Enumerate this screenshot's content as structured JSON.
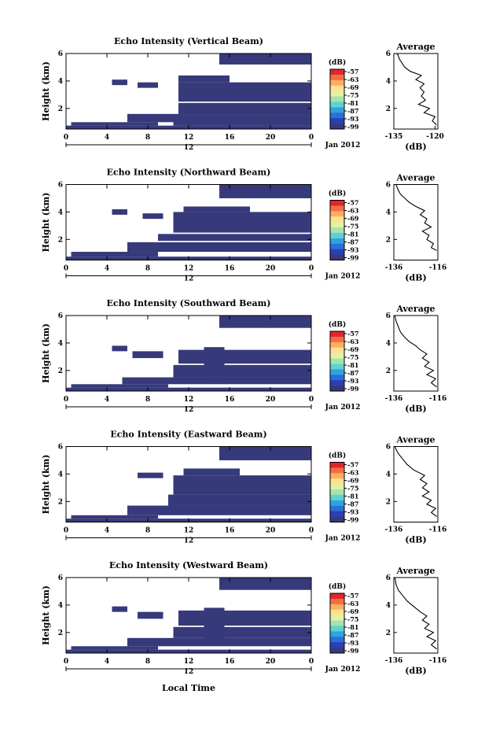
{
  "figure": {
    "xlabel": "Local Time",
    "date_label": "Jan 2012",
    "colorbar_unit": "(dB)",
    "colorbar_ticks": [
      "-57",
      "-63",
      "-69",
      "-75",
      "-81",
      "-87",
      "-93",
      "-99"
    ],
    "colorbar_colors": [
      "#e0262a",
      "#f46d43",
      "#fdae61",
      "#fee090",
      "#e0f3a0",
      "#a6e3b0",
      "#5ed3d0",
      "#2fa3e0",
      "#2c6fd8",
      "#2b40b8",
      "#363a7a"
    ],
    "fill_color": "#363a7a"
  },
  "chart_data": [
    {
      "type": "heatmap",
      "title": "Echo Intensity (Vertical Beam)",
      "ylabel": "Height (km)",
      "xticks": [
        "0",
        "4",
        "8",
        "12",
        "16",
        "20",
        "0"
      ],
      "day_label": "12",
      "xlim": [
        0,
        24
      ],
      "ylim": [
        0.5,
        6
      ],
      "yticks": [
        "2",
        "4",
        "6"
      ],
      "layers": [
        {
          "x0": 0,
          "x1": 24,
          "y0": 0.5,
          "y1": 0.75
        },
        {
          "x0": 0.5,
          "x1": 9,
          "y0": 0.75,
          "y1": 1.0
        },
        {
          "x0": 6,
          "x1": 11,
          "y0": 1.0,
          "y1": 1.6
        },
        {
          "x0": 10.5,
          "x1": 24,
          "y0": 0.75,
          "y1": 1.5
        },
        {
          "x0": 11,
          "x1": 24,
          "y0": 1.5,
          "y1": 2.4
        },
        {
          "x0": 11,
          "x1": 24,
          "y0": 2.5,
          "y1": 3.9
        },
        {
          "x0": 11,
          "x1": 16,
          "y0": 3.9,
          "y1": 4.4
        },
        {
          "x0": 4.5,
          "x1": 6,
          "y0": 3.7,
          "y1": 4.1
        },
        {
          "x0": 7,
          "x1": 9,
          "y0": 3.5,
          "y1": 3.9
        },
        {
          "x0": 15,
          "x1": 24,
          "y0": 5.2,
          "y1": 6.0
        }
      ],
      "average": {
        "xlabel": "(dB)",
        "title": "Average",
        "xlim": [
          -135,
          -119
        ],
        "xticks": [
          "-135",
          "-120"
        ],
        "yticks": [
          "2",
          "4",
          "6"
        ],
        "profile": [
          [
            -119.5,
            0.8
          ],
          [
            -121,
            1.1
          ],
          [
            -120,
            1.4
          ],
          [
            -124,
            1.7
          ],
          [
            -122,
            2.0
          ],
          [
            -126,
            2.3
          ],
          [
            -123.5,
            2.6
          ],
          [
            -125,
            2.9
          ],
          [
            -124,
            3.2
          ],
          [
            -125.5,
            3.5
          ],
          [
            -124,
            3.8
          ],
          [
            -127,
            4.1
          ],
          [
            -125,
            4.4
          ],
          [
            -129,
            4.7
          ],
          [
            -131,
            5.0
          ],
          [
            -132,
            5.3
          ],
          [
            -133,
            5.6
          ],
          [
            -133.5,
            5.9
          ],
          [
            -134,
            6.0
          ]
        ]
      }
    },
    {
      "type": "heatmap",
      "title": "Echo Intensity (Northward Beam)",
      "ylabel": "Height (km)",
      "xticks": [
        "0",
        "4",
        "8",
        "12",
        "16",
        "20",
        "0"
      ],
      "day_label": "12",
      "xlim": [
        0,
        24
      ],
      "ylim": [
        0.5,
        6
      ],
      "yticks": [
        "2",
        "4",
        "6"
      ],
      "layers": [
        {
          "x0": 0,
          "x1": 24,
          "y0": 0.5,
          "y1": 0.75
        },
        {
          "x0": 0.5,
          "x1": 9,
          "y0": 0.75,
          "y1": 1.1
        },
        {
          "x0": 6,
          "x1": 24,
          "y0": 1.1,
          "y1": 1.8
        },
        {
          "x0": 9,
          "x1": 24,
          "y0": 1.9,
          "y1": 2.4
        },
        {
          "x0": 10.5,
          "x1": 24,
          "y0": 2.5,
          "y1": 4.0
        },
        {
          "x0": 11.5,
          "x1": 18,
          "y0": 4.0,
          "y1": 4.4
        },
        {
          "x0": 4.5,
          "x1": 6,
          "y0": 3.8,
          "y1": 4.2
        },
        {
          "x0": 7.5,
          "x1": 9.5,
          "y0": 3.5,
          "y1": 3.9
        },
        {
          "x0": 15,
          "x1": 24,
          "y0": 5.0,
          "y1": 6.0
        }
      ],
      "average": {
        "xlabel": "(dB)",
        "title": "Average",
        "xlim": [
          -136,
          -116
        ],
        "xticks": [
          "-136",
          "-116"
        ],
        "yticks": [
          "2",
          "4",
          "6"
        ],
        "profile": [
          [
            -116.5,
            1.2
          ],
          [
            -119,
            1.4
          ],
          [
            -118,
            1.7
          ],
          [
            -121,
            2.0
          ],
          [
            -120,
            2.3
          ],
          [
            -123,
            2.6
          ],
          [
            -119,
            2.9
          ],
          [
            -122,
            3.2
          ],
          [
            -121,
            3.5
          ],
          [
            -124,
            3.8
          ],
          [
            -122,
            4.1
          ],
          [
            -126,
            4.4
          ],
          [
            -129,
            4.7
          ],
          [
            -131,
            5.0
          ],
          [
            -133,
            5.3
          ],
          [
            -134,
            5.6
          ],
          [
            -135,
            6.0
          ]
        ]
      }
    },
    {
      "type": "heatmap",
      "title": "Echo Intensity (Southward Beam)",
      "ylabel": "Height (km)",
      "xticks": [
        "0",
        "4",
        "8",
        "12",
        "16",
        "20",
        "0"
      ],
      "day_label": "12",
      "xlim": [
        0,
        24
      ],
      "ylim": [
        0.5,
        6
      ],
      "yticks": [
        "2",
        "4",
        "6"
      ],
      "layers": [
        {
          "x0": 0,
          "x1": 24,
          "y0": 0.5,
          "y1": 0.75
        },
        {
          "x0": 0.5,
          "x1": 10,
          "y0": 0.75,
          "y1": 1.0
        },
        {
          "x0": 5.5,
          "x1": 24,
          "y0": 1.0,
          "y1": 1.5
        },
        {
          "x0": 10.5,
          "x1": 24,
          "y0": 1.5,
          "y1": 2.4
        },
        {
          "x0": 13.5,
          "x1": 15.5,
          "y0": 1.5,
          "y1": 3.7
        },
        {
          "x0": 11,
          "x1": 24,
          "y0": 2.5,
          "y1": 3.5
        },
        {
          "x0": 6.5,
          "x1": 9.5,
          "y0": 2.9,
          "y1": 3.4
        },
        {
          "x0": 4.5,
          "x1": 6,
          "y0": 3.4,
          "y1": 3.8
        },
        {
          "x0": 15,
          "x1": 24,
          "y0": 5.1,
          "y1": 6.0
        }
      ],
      "average": {
        "xlabel": "(dB)",
        "title": "Average",
        "xlim": [
          -136,
          -116
        ],
        "xticks": [
          "-136",
          "-116"
        ],
        "yticks": [
          "2",
          "4",
          "6"
        ],
        "profile": [
          [
            -116.5,
            0.8
          ],
          [
            -119,
            1.1
          ],
          [
            -117,
            1.4
          ],
          [
            -121,
            1.7
          ],
          [
            -118,
            2.0
          ],
          [
            -122,
            2.3
          ],
          [
            -120,
            2.6
          ],
          [
            -123,
            2.9
          ],
          [
            -121,
            3.2
          ],
          [
            -124,
            3.5
          ],
          [
            -126,
            3.8
          ],
          [
            -129,
            4.1
          ],
          [
            -131,
            4.4
          ],
          [
            -133,
            4.8
          ],
          [
            -134,
            5.2
          ],
          [
            -135,
            5.6
          ],
          [
            -135.5,
            6.0
          ]
        ]
      }
    },
    {
      "type": "heatmap",
      "title": "Echo Intensity (Eastward Beam)",
      "ylabel": "Height (km)",
      "xticks": [
        "0",
        "4",
        "8",
        "12",
        "16",
        "20",
        "0"
      ],
      "day_label": "12",
      "xlim": [
        0,
        24
      ],
      "ylim": [
        0.5,
        6
      ],
      "yticks": [
        "2",
        "4",
        "6"
      ],
      "layers": [
        {
          "x0": 0,
          "x1": 24,
          "y0": 0.5,
          "y1": 0.75
        },
        {
          "x0": 0.5,
          "x1": 9,
          "y0": 0.75,
          "y1": 1.0
        },
        {
          "x0": 6,
          "x1": 24,
          "y0": 1.0,
          "y1": 1.7
        },
        {
          "x0": 10,
          "x1": 24,
          "y0": 1.7,
          "y1": 2.5
        },
        {
          "x0": 10.5,
          "x1": 24,
          "y0": 2.5,
          "y1": 3.9
        },
        {
          "x0": 11.5,
          "x1": 17,
          "y0": 3.9,
          "y1": 4.4
        },
        {
          "x0": 7,
          "x1": 9.5,
          "y0": 3.7,
          "y1": 4.1
        },
        {
          "x0": 15,
          "x1": 24,
          "y0": 5.0,
          "y1": 6.0
        }
      ],
      "average": {
        "xlabel": "(dB)",
        "title": "Average",
        "xlim": [
          -136,
          -116
        ],
        "xticks": [
          "-136",
          "-116"
        ],
        "yticks": [
          "2",
          "4",
          "6"
        ],
        "profile": [
          [
            -116.5,
            0.9
          ],
          [
            -119,
            1.2
          ],
          [
            -117,
            1.5
          ],
          [
            -121,
            1.8
          ],
          [
            -119,
            2.1
          ],
          [
            -123,
            2.4
          ],
          [
            -120,
            2.7
          ],
          [
            -123,
            3.0
          ],
          [
            -121,
            3.3
          ],
          [
            -124,
            3.6
          ],
          [
            -122,
            3.9
          ],
          [
            -127,
            4.3
          ],
          [
            -130,
            4.7
          ],
          [
            -132,
            5.1
          ],
          [
            -134,
            5.5
          ],
          [
            -135,
            5.8
          ],
          [
            -135.5,
            6.0
          ]
        ]
      }
    },
    {
      "type": "heatmap",
      "title": "Echo Intensity (Westward Beam)",
      "ylabel": "Height (km)",
      "xticks": [
        "0",
        "4",
        "8",
        "12",
        "16",
        "20",
        "0"
      ],
      "day_label": "12",
      "xlim": [
        0,
        24
      ],
      "ylim": [
        0.5,
        6
      ],
      "yticks": [
        "2",
        "4",
        "6"
      ],
      "layers": [
        {
          "x0": 0,
          "x1": 24,
          "y0": 0.5,
          "y1": 0.75
        },
        {
          "x0": 0.5,
          "x1": 9,
          "y0": 0.75,
          "y1": 1.0
        },
        {
          "x0": 6,
          "x1": 24,
          "y0": 1.0,
          "y1": 1.6
        },
        {
          "x0": 10.5,
          "x1": 24,
          "y0": 1.6,
          "y1": 2.4
        },
        {
          "x0": 13.5,
          "x1": 15.5,
          "y0": 1.5,
          "y1": 3.8
        },
        {
          "x0": 11,
          "x1": 24,
          "y0": 2.5,
          "y1": 3.6
        },
        {
          "x0": 7,
          "x1": 9.5,
          "y0": 3.0,
          "y1": 3.5
        },
        {
          "x0": 4.5,
          "x1": 6,
          "y0": 3.5,
          "y1": 3.9
        },
        {
          "x0": 15,
          "x1": 24,
          "y0": 5.1,
          "y1": 6.0
        }
      ],
      "average": {
        "xlabel": "(dB)",
        "title": "Average",
        "xlim": [
          -136,
          -116
        ],
        "xticks": [
          "-136",
          "-116"
        ],
        "yticks": [
          "2",
          "4",
          "6"
        ],
        "profile": [
          [
            -116.5,
            0.8
          ],
          [
            -119,
            1.1
          ],
          [
            -117,
            1.4
          ],
          [
            -121,
            1.7
          ],
          [
            -118,
            2.0
          ],
          [
            -122,
            2.3
          ],
          [
            -120,
            2.6
          ],
          [
            -123,
            2.9
          ],
          [
            -121,
            3.2
          ],
          [
            -124,
            3.5
          ],
          [
            -127,
            3.9
          ],
          [
            -130,
            4.3
          ],
          [
            -132,
            4.7
          ],
          [
            -134,
            5.1
          ],
          [
            -135,
            5.5
          ],
          [
            -135.5,
            6.0
          ]
        ]
      }
    }
  ]
}
